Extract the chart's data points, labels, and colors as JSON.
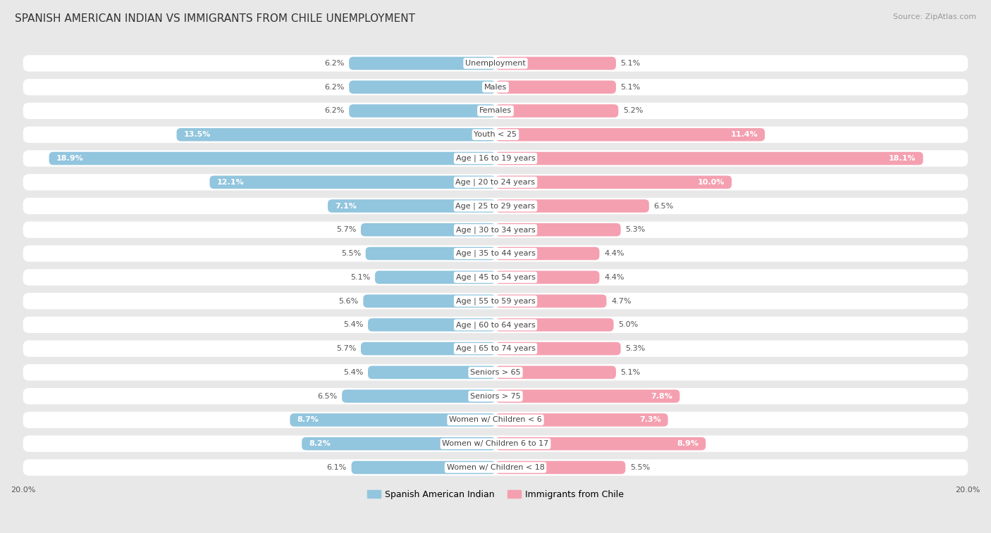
{
  "title": "SPANISH AMERICAN INDIAN VS IMMIGRANTS FROM CHILE UNEMPLOYMENT",
  "source": "Source: ZipAtlas.com",
  "categories": [
    "Unemployment",
    "Males",
    "Females",
    "Youth < 25",
    "Age | 16 to 19 years",
    "Age | 20 to 24 years",
    "Age | 25 to 29 years",
    "Age | 30 to 34 years",
    "Age | 35 to 44 years",
    "Age | 45 to 54 years",
    "Age | 55 to 59 years",
    "Age | 60 to 64 years",
    "Age | 65 to 74 years",
    "Seniors > 65",
    "Seniors > 75",
    "Women w/ Children < 6",
    "Women w/ Children 6 to 17",
    "Women w/ Children < 18"
  ],
  "left_values": [
    6.2,
    6.2,
    6.2,
    13.5,
    18.9,
    12.1,
    7.1,
    5.7,
    5.5,
    5.1,
    5.6,
    5.4,
    5.7,
    5.4,
    6.5,
    8.7,
    8.2,
    6.1
  ],
  "right_values": [
    5.1,
    5.1,
    5.2,
    11.4,
    18.1,
    10.0,
    6.5,
    5.3,
    4.4,
    4.4,
    4.7,
    5.0,
    5.3,
    5.1,
    7.8,
    7.3,
    8.9,
    5.5
  ],
  "left_color": "#92C5DE",
  "right_color": "#F4A0B0",
  "left_label": "Spanish American Indian",
  "right_label": "Immigrants from Chile",
  "xlim": 20.0,
  "bg_color": "#e8e8e8",
  "row_color": "#ffffff",
  "title_fontsize": 11,
  "cat_fontsize": 8,
  "value_fontsize": 8,
  "source_fontsize": 8,
  "legend_fontsize": 9
}
